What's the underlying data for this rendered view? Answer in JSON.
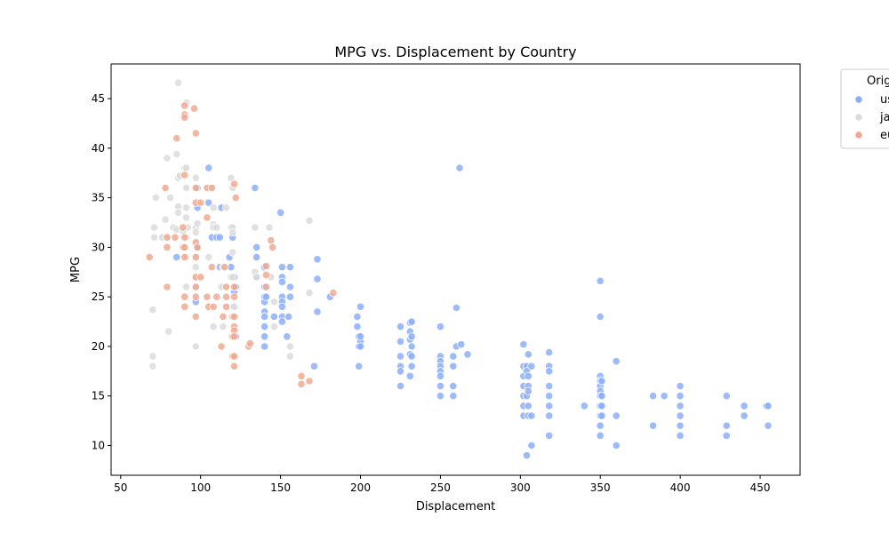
{
  "chart_data": {
    "type": "scatter",
    "title": "MPG vs. Displacement by Country",
    "xlabel": "Displacement",
    "ylabel": "MPG",
    "xlim": [
      44,
      475
    ],
    "ylim": [
      7,
      48.5
    ],
    "xticks": [
      50,
      100,
      150,
      200,
      250,
      300,
      350,
      400,
      450
    ],
    "yticks": [
      10,
      15,
      20,
      25,
      30,
      35,
      40,
      45
    ],
    "grid": false,
    "legend": {
      "title": "Orig",
      "placement": "top-right-outside",
      "entries": [
        "us",
        "ja",
        "eu"
      ]
    },
    "series": [
      {
        "name": "us",
        "color": "#8caef9",
        "points": [
          [
            85,
            29
          ],
          [
            97,
            26
          ],
          [
            98,
            30
          ],
          [
            98,
            36
          ],
          [
            98,
            34
          ],
          [
            97,
            24.5
          ],
          [
            105,
            38
          ],
          [
            105,
            34.5
          ],
          [
            107,
            31
          ],
          [
            110,
            31
          ],
          [
            112,
            28
          ],
          [
            112,
            31
          ],
          [
            113,
            34
          ],
          [
            118,
            29
          ],
          [
            119,
            28
          ],
          [
            120,
            31
          ],
          [
            121,
            27
          ],
          [
            121,
            25.5
          ],
          [
            122,
            26
          ],
          [
            121,
            24
          ],
          [
            122,
            21
          ],
          [
            134,
            36
          ],
          [
            135,
            27
          ],
          [
            135,
            30
          ],
          [
            135,
            29
          ],
          [
            140,
            28
          ],
          [
            140,
            26
          ],
          [
            140,
            25
          ],
          [
            140,
            24.5
          ],
          [
            140,
            23.5
          ],
          [
            140,
            23
          ],
          [
            140,
            22
          ],
          [
            140,
            20
          ],
          [
            140,
            21
          ],
          [
            141,
            25
          ],
          [
            146,
            23
          ],
          [
            150,
            33.5
          ],
          [
            151,
            28
          ],
          [
            151,
            27
          ],
          [
            151,
            26.5
          ],
          [
            151,
            25
          ],
          [
            151,
            24.5
          ],
          [
            151,
            24
          ],
          [
            151,
            23
          ],
          [
            151,
            22.5
          ],
          [
            154,
            21
          ],
          [
            155,
            23
          ],
          [
            156,
            28
          ],
          [
            156,
            26
          ],
          [
            156,
            25
          ],
          [
            171,
            18
          ],
          [
            173,
            28.8
          ],
          [
            173,
            26.8
          ],
          [
            173,
            23.5
          ],
          [
            181,
            25
          ],
          [
            198,
            23
          ],
          [
            198,
            22
          ],
          [
            199,
            21
          ],
          [
            199,
            20
          ],
          [
            199,
            18
          ],
          [
            200,
            20.5
          ],
          [
            200,
            24
          ],
          [
            200,
            21
          ],
          [
            200,
            20
          ],
          [
            225,
            22
          ],
          [
            225,
            20.5
          ],
          [
            225,
            19
          ],
          [
            225,
            18
          ],
          [
            225,
            17.5
          ],
          [
            225,
            16
          ],
          [
            231,
            22.4
          ],
          [
            231,
            21.5
          ],
          [
            231,
            20.7
          ],
          [
            231,
            19.2
          ],
          [
            231,
            17
          ],
          [
            232,
            22.5
          ],
          [
            232,
            21
          ],
          [
            232,
            20
          ],
          [
            232,
            19
          ],
          [
            232,
            18
          ],
          [
            250,
            22
          ],
          [
            250,
            19
          ],
          [
            250,
            18.5
          ],
          [
            250,
            18
          ],
          [
            250,
            17.5
          ],
          [
            250,
            17
          ],
          [
            250,
            16
          ],
          [
            250,
            15
          ],
          [
            258,
            19
          ],
          [
            258,
            18
          ],
          [
            258,
            16
          ],
          [
            258,
            15
          ],
          [
            260,
            23.9
          ],
          [
            260,
            20
          ],
          [
            262,
            38
          ],
          [
            263,
            20.2
          ],
          [
            267,
            19.2
          ],
          [
            302,
            20.2
          ],
          [
            302,
            18
          ],
          [
            302,
            17
          ],
          [
            302,
            16
          ],
          [
            302,
            15
          ],
          [
            302,
            14
          ],
          [
            302,
            13
          ],
          [
            304,
            15
          ],
          [
            304,
            18
          ],
          [
            304,
            17.5
          ],
          [
            305,
            17
          ],
          [
            305,
            16
          ],
          [
            305,
            15.5
          ],
          [
            305,
            14
          ],
          [
            305,
            13
          ],
          [
            305,
            19.2
          ],
          [
            304,
            9
          ],
          [
            307,
            10
          ],
          [
            307,
            13
          ],
          [
            307,
            18
          ],
          [
            318,
            19.4
          ],
          [
            318,
            18
          ],
          [
            318,
            17.5
          ],
          [
            318,
            16
          ],
          [
            318,
            15
          ],
          [
            318,
            14
          ],
          [
            318,
            13
          ],
          [
            318,
            11
          ],
          [
            340,
            14
          ],
          [
            350,
            26.6
          ],
          [
            350,
            23
          ],
          [
            350,
            17
          ],
          [
            350,
            16.5
          ],
          [
            350,
            16
          ],
          [
            350,
            15.5
          ],
          [
            350,
            15
          ],
          [
            350,
            14
          ],
          [
            350,
            13
          ],
          [
            350,
            12
          ],
          [
            350,
            11
          ],
          [
            351,
            15
          ],
          [
            351,
            14
          ],
          [
            351,
            13
          ],
          [
            351,
            16.5
          ],
          [
            360,
            18.5
          ],
          [
            360,
            13
          ],
          [
            360,
            10
          ],
          [
            383,
            15
          ],
          [
            383,
            12
          ],
          [
            390,
            15
          ],
          [
            400,
            16
          ],
          [
            400,
            15
          ],
          [
            400,
            14
          ],
          [
            400,
            13
          ],
          [
            400,
            12
          ],
          [
            400,
            11
          ],
          [
            429,
            15
          ],
          [
            429,
            12
          ],
          [
            429,
            11
          ],
          [
            440,
            14
          ],
          [
            440,
            13
          ],
          [
            454,
            14
          ],
          [
            455,
            14
          ],
          [
            455,
            12
          ]
        ]
      },
      {
        "name": "ja",
        "color": "#dddcdc",
        "points": [
          [
            70,
            23.7
          ],
          [
            70,
            19
          ],
          [
            70,
            18
          ],
          [
            71,
            32
          ],
          [
            71,
            31
          ],
          [
            72,
            35
          ],
          [
            76,
            31
          ],
          [
            78,
            32.8
          ],
          [
            79,
            39
          ],
          [
            79,
            31
          ],
          [
            80,
            21.5
          ],
          [
            81,
            35
          ],
          [
            83,
            32
          ],
          [
            85,
            31.8
          ],
          [
            85,
            39.4
          ],
          [
            86,
            46.6
          ],
          [
            86,
            37
          ],
          [
            86,
            34.1
          ],
          [
            86,
            33.5
          ],
          [
            87,
            37.2
          ],
          [
            89,
            31.6
          ],
          [
            90,
            38
          ],
          [
            91,
            44.6
          ],
          [
            91,
            38
          ],
          [
            91,
            36
          ],
          [
            91,
            34
          ],
          [
            91,
            33
          ],
          [
            91,
            31
          ],
          [
            91,
            29
          ],
          [
            91,
            26
          ],
          [
            92,
            32
          ],
          [
            97,
            37
          ],
          [
            97,
            32
          ],
          [
            97,
            31.5
          ],
          [
            97,
            29
          ],
          [
            97,
            28
          ],
          [
            97,
            27
          ],
          [
            97,
            26
          ],
          [
            97,
            20
          ],
          [
            98,
            32.4
          ],
          [
            105,
            29
          ],
          [
            107,
            36
          ],
          [
            108,
            34
          ],
          [
            108,
            32.3
          ],
          [
            108,
            32
          ],
          [
            108,
            22
          ],
          [
            110,
            32
          ],
          [
            113,
            26
          ],
          [
            114,
            28
          ],
          [
            114,
            22
          ],
          [
            116,
            34
          ],
          [
            119,
            37
          ],
          [
            119,
            32
          ],
          [
            119,
            27
          ],
          [
            120,
            36
          ],
          [
            120,
            32
          ],
          [
            120,
            31.5
          ],
          [
            120,
            29.5
          ],
          [
            120,
            27
          ],
          [
            120,
            24
          ],
          [
            121,
            24
          ],
          [
            134,
            32
          ],
          [
            134,
            27.5
          ],
          [
            135,
            27
          ],
          [
            143,
            32
          ],
          [
            144,
            27
          ],
          [
            146,
            24.5
          ],
          [
            146,
            22
          ],
          [
            156,
            20
          ],
          [
            156,
            19
          ],
          [
            168,
            32.7
          ],
          [
            168,
            25.4
          ]
        ]
      },
      {
        "name": "eu",
        "color": "#f0a990",
        "points": [
          [
            68,
            29
          ],
          [
            78,
            36
          ],
          [
            79,
            31
          ],
          [
            79,
            30
          ],
          [
            79,
            26
          ],
          [
            84,
            31
          ],
          [
            85,
            41
          ],
          [
            89,
            30
          ],
          [
            89,
            32
          ],
          [
            90,
            44.3
          ],
          [
            90,
            43.4
          ],
          [
            90,
            43.1
          ],
          [
            90,
            37.3
          ],
          [
            90,
            31
          ],
          [
            90,
            30
          ],
          [
            90,
            29
          ],
          [
            90,
            25
          ],
          [
            90,
            24
          ],
          [
            96,
            44
          ],
          [
            97,
            41.5
          ],
          [
            97,
            36
          ],
          [
            97,
            34.5
          ],
          [
            97,
            30.5
          ],
          [
            97,
            29
          ],
          [
            97,
            27
          ],
          [
            97,
            26
          ],
          [
            97,
            25
          ],
          [
            97,
            23
          ],
          [
            98,
            30
          ],
          [
            100,
            34.5
          ],
          [
            100,
            27
          ],
          [
            104,
            36
          ],
          [
            104,
            33
          ],
          [
            104,
            25
          ],
          [
            105,
            24
          ],
          [
            107,
            28
          ],
          [
            107,
            36
          ],
          [
            108,
            24
          ],
          [
            110,
            25
          ],
          [
            113,
            20
          ],
          [
            114,
            23
          ],
          [
            115,
            28
          ],
          [
            116,
            26
          ],
          [
            116,
            25
          ],
          [
            116,
            24
          ],
          [
            120,
            23
          ],
          [
            120,
            21
          ],
          [
            120,
            19
          ],
          [
            121,
            36.4
          ],
          [
            121,
            26
          ],
          [
            121,
            25
          ],
          [
            121,
            23
          ],
          [
            121,
            22
          ],
          [
            121,
            21.6
          ],
          [
            121,
            21
          ],
          [
            121,
            19
          ],
          [
            121,
            18
          ],
          [
            122,
            35
          ],
          [
            130,
            20
          ],
          [
            131,
            20.3
          ],
          [
            141,
            28.1
          ],
          [
            141,
            27.2
          ],
          [
            141,
            26
          ],
          [
            144,
            30.7
          ],
          [
            145,
            30
          ],
          [
            163,
            17
          ],
          [
            163,
            16.2
          ],
          [
            168,
            16.5
          ],
          [
            183,
            25.4
          ]
        ]
      }
    ]
  }
}
